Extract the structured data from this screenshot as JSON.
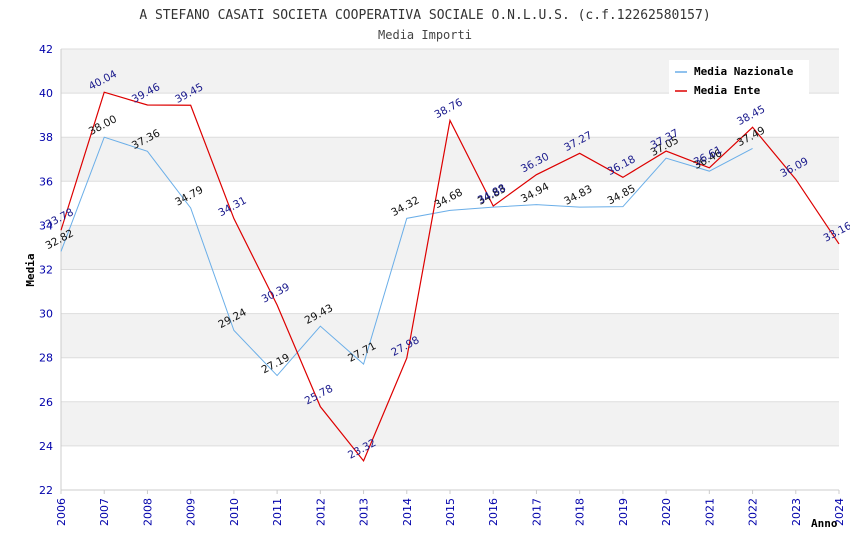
{
  "chart_data": {
    "type": "line",
    "title": "A STEFANO CASATI SOCIETA COOPERATIVA SOCIALE O.N.L.U.S. (c.f.12262580157)",
    "subtitle": "Media Importi",
    "xlabel": "Anno",
    "ylabel": "Media",
    "ylim": [
      22,
      42
    ],
    "yticks": [
      "22",
      "24",
      "26",
      "28",
      "30",
      "32",
      "34",
      "36",
      "38",
      "40",
      "42"
    ],
    "ytick_values": [
      22,
      24,
      26,
      28,
      30,
      32,
      34,
      36,
      38,
      40,
      42
    ],
    "x": [
      "2006",
      "2007",
      "2008",
      "2009",
      "2010",
      "2011",
      "2012",
      "2013",
      "2014",
      "2015",
      "2016",
      "2017",
      "2018",
      "2019",
      "2020",
      "2021",
      "2022",
      "2023",
      "2024"
    ],
    "legend_position": "top-right",
    "series": [
      {
        "name": "Media Nazionale",
        "color": "#6aaee8",
        "values": [
          32.82,
          38.0,
          37.36,
          34.79,
          29.24,
          27.19,
          29.43,
          27.71,
          34.32,
          34.68,
          34.83,
          34.94,
          34.83,
          34.85,
          37.05,
          36.46,
          37.49,
          null,
          null
        ],
        "labels": [
          "32.82",
          "38.00",
          "37.36",
          "34.79",
          "29.24",
          "27.19",
          "29.43",
          "27.71",
          "34.32",
          "34.68",
          "34.83",
          "34.94",
          "34.83",
          "34.85",
          "37.05",
          "36.46",
          "37.49",
          "",
          ""
        ]
      },
      {
        "name": "Media Ente",
        "color": "#dd0000",
        "values": [
          33.78,
          40.04,
          39.46,
          39.45,
          34.31,
          30.39,
          25.78,
          23.32,
          27.98,
          38.76,
          34.88,
          36.3,
          37.27,
          36.18,
          37.37,
          36.61,
          38.45,
          36.09,
          33.16
        ],
        "labels": [
          "33.78",
          "40.04",
          "39.46",
          "39.45",
          "34.31",
          "30.39",
          "25.78",
          "23.32",
          "27.98",
          "38.76",
          "34.88",
          "36.30",
          "37.27",
          "36.18",
          "37.37",
          "36.61",
          "38.45",
          "36.09",
          "33.16"
        ]
      }
    ]
  }
}
